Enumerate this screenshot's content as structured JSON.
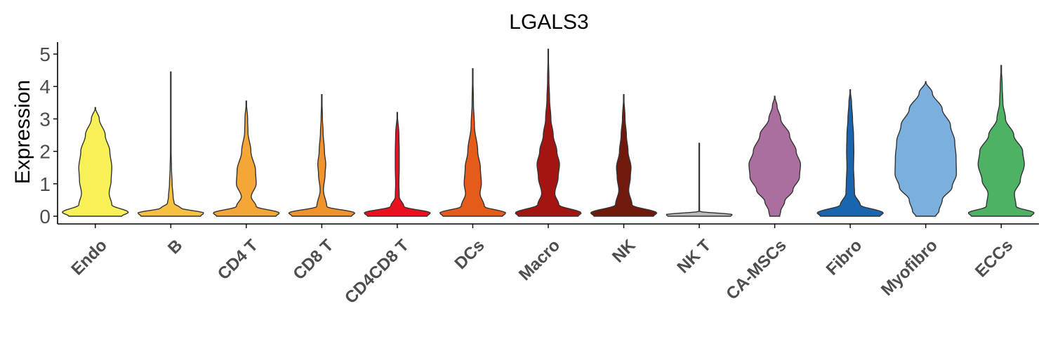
{
  "chart_data": {
    "type": "violin",
    "title": "LGALS3",
    "ylabel": "Expression",
    "xlabel": "",
    "ylim": [
      0,
      5.1
    ],
    "yticks": [
      "0",
      "1",
      "2",
      "3",
      "4",
      "5"
    ],
    "categories": [
      "Endo",
      "B",
      "CD4 T",
      "CD8 T",
      "CD4CD8 T",
      "DCs",
      "Macro",
      "NK",
      "NK T",
      "CA-MSCs",
      "Fibro",
      "Myofibro",
      "ECCs"
    ],
    "colors": [
      "#f7f157",
      "#f6c141",
      "#f4a736",
      "#f1932d",
      "#e8111f",
      "#e55c1a",
      "#a41512",
      "#72190e",
      "#bbbbbb",
      "#aa6f9e",
      "#1965b0",
      "#7bafde",
      "#4eb265"
    ],
    "max_values": [
      3.35,
      4.45,
      3.55,
      3.75,
      3.2,
      4.55,
      5.15,
      3.75,
      2.25,
      3.7,
      3.9,
      4.15,
      4.65
    ],
    "density_profiles": [
      [
        [
          0,
          0.8
        ],
        [
          0.12,
          1.0
        ],
        [
          0.35,
          0.5
        ],
        [
          0.7,
          0.42
        ],
        [
          1.1,
          0.48
        ],
        [
          1.5,
          0.5
        ],
        [
          2.0,
          0.44
        ],
        [
          2.5,
          0.3
        ],
        [
          3.0,
          0.12
        ],
        [
          3.35,
          0.0
        ]
      ],
      [
        [
          0,
          0.9
        ],
        [
          0.1,
          1.0
        ],
        [
          0.25,
          0.3
        ],
        [
          0.4,
          0.1
        ],
        [
          0.6,
          0.07
        ],
        [
          1.0,
          0.04
        ],
        [
          1.5,
          0.02
        ],
        [
          2.0,
          0.01
        ],
        [
          4.45,
          0.0
        ]
      ],
      [
        [
          0,
          0.9
        ],
        [
          0.1,
          1.0
        ],
        [
          0.3,
          0.3
        ],
        [
          0.6,
          0.15
        ],
        [
          1.0,
          0.3
        ],
        [
          1.4,
          0.28
        ],
        [
          2.0,
          0.14
        ],
        [
          2.6,
          0.05
        ],
        [
          3.0,
          0.04
        ],
        [
          3.55,
          0.0
        ]
      ],
      [
        [
          0,
          0.9
        ],
        [
          0.1,
          1.0
        ],
        [
          0.3,
          0.15
        ],
        [
          0.8,
          0.05
        ],
        [
          1.3,
          0.1
        ],
        [
          1.6,
          0.12
        ],
        [
          2.0,
          0.08
        ],
        [
          2.6,
          0.04
        ],
        [
          3.0,
          0.02
        ],
        [
          3.75,
          0.0
        ]
      ],
      [
        [
          0,
          0.9
        ],
        [
          0.1,
          1.0
        ],
        [
          0.3,
          0.2
        ],
        [
          0.6,
          0.06
        ],
        [
          1.0,
          0.05
        ],
        [
          1.5,
          0.06
        ],
        [
          2.0,
          0.06
        ],
        [
          2.5,
          0.05
        ],
        [
          3.2,
          0.0
        ]
      ],
      [
        [
          0,
          0.9
        ],
        [
          0.1,
          1.0
        ],
        [
          0.3,
          0.35
        ],
        [
          0.7,
          0.22
        ],
        [
          1.0,
          0.26
        ],
        [
          1.5,
          0.23
        ],
        [
          2.0,
          0.15
        ],
        [
          2.8,
          0.05
        ],
        [
          3.5,
          0.02
        ],
        [
          4.55,
          0.0
        ]
      ],
      [
        [
          0,
          0.9
        ],
        [
          0.1,
          1.0
        ],
        [
          0.35,
          0.32
        ],
        [
          0.7,
          0.2
        ],
        [
          1.2,
          0.3
        ],
        [
          1.6,
          0.34
        ],
        [
          2.0,
          0.26
        ],
        [
          2.5,
          0.15
        ],
        [
          3.0,
          0.08
        ],
        [
          3.6,
          0.04
        ],
        [
          4.2,
          0.02
        ],
        [
          5.15,
          0.0
        ]
      ],
      [
        [
          0,
          0.9
        ],
        [
          0.1,
          1.0
        ],
        [
          0.35,
          0.25
        ],
        [
          0.8,
          0.15
        ],
        [
          1.2,
          0.2
        ],
        [
          1.5,
          0.22
        ],
        [
          2.0,
          0.13
        ],
        [
          2.5,
          0.08
        ],
        [
          3.0,
          0.04
        ],
        [
          3.75,
          0.0
        ]
      ],
      [
        [
          0,
          0.95
        ],
        [
          0.05,
          1.0
        ],
        [
          0.15,
          0.01
        ],
        [
          1.0,
          0.005
        ],
        [
          2.25,
          0.0
        ]
      ],
      [
        [
          0,
          0.15
        ],
        [
          0.15,
          0.18
        ],
        [
          0.45,
          0.3
        ],
        [
          0.8,
          0.55
        ],
        [
          1.2,
          0.75
        ],
        [
          1.6,
          0.78
        ],
        [
          2.0,
          0.65
        ],
        [
          2.5,
          0.45
        ],
        [
          3.0,
          0.18
        ],
        [
          3.4,
          0.07
        ],
        [
          3.7,
          0.0
        ]
      ],
      [
        [
          0,
          0.9
        ],
        [
          0.1,
          1.0
        ],
        [
          0.35,
          0.3
        ],
        [
          0.7,
          0.13
        ],
        [
          1.0,
          0.12
        ],
        [
          1.5,
          0.1
        ],
        [
          2.0,
          0.11
        ],
        [
          2.5,
          0.1
        ],
        [
          3.0,
          0.07
        ],
        [
          3.5,
          0.04
        ],
        [
          3.9,
          0.0
        ]
      ],
      [
        [
          0,
          0.3
        ],
        [
          0.15,
          0.4
        ],
        [
          0.5,
          0.5
        ],
        [
          0.9,
          0.8
        ],
        [
          1.3,
          0.93
        ],
        [
          1.8,
          0.92
        ],
        [
          2.3,
          0.88
        ],
        [
          2.8,
          0.75
        ],
        [
          3.3,
          0.5
        ],
        [
          3.8,
          0.2
        ],
        [
          4.15,
          0.0
        ]
      ],
      [
        [
          0,
          0.9
        ],
        [
          0.1,
          1.0
        ],
        [
          0.3,
          0.45
        ],
        [
          0.7,
          0.4
        ],
        [
          1.1,
          0.58
        ],
        [
          1.6,
          0.7
        ],
        [
          2.0,
          0.65
        ],
        [
          2.5,
          0.38
        ],
        [
          3.0,
          0.13
        ],
        [
          3.5,
          0.05
        ],
        [
          4.0,
          0.03
        ],
        [
          4.65,
          0.0
        ]
      ]
    ]
  }
}
